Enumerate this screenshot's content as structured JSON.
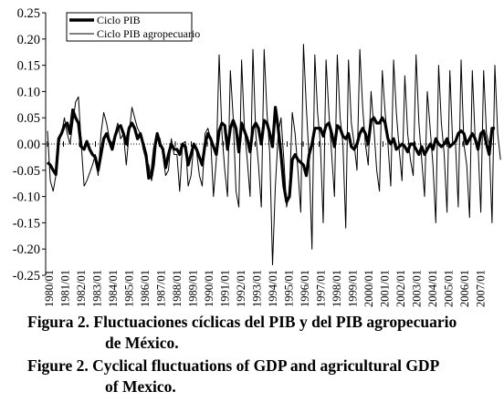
{
  "chart_data": {
    "type": "line",
    "ylim": [
      -0.25,
      0.25
    ],
    "yticks": [
      "0.25",
      "0.20",
      "0.15",
      "0.10",
      "0.05",
      "0.00",
      "-0.05",
      "-0.10",
      "-0.15",
      "-0.20",
      "-0.25"
    ],
    "xlabels": [
      "1980/01",
      "1981/01",
      "1982/01",
      "1983/01",
      "1984/01",
      "1985/01",
      "1986/01",
      "1987/01",
      "1988/01",
      "1989/01",
      "1990/01",
      "1991/01",
      "1992/01",
      "1993/01",
      "1994/01",
      "1995/01",
      "1996/01",
      "1997/01",
      "1998/01",
      "1999/01",
      "2000/01",
      "2001/01",
      "2002/01",
      "2003/01",
      "2004/01",
      "2005/01",
      "2006/01",
      "2007/01"
    ],
    "legend_position": "top-left",
    "series": [
      {
        "name": "Ciclo PIB",
        "style": "thick",
        "values": [
          -0.035,
          -0.04,
          -0.05,
          -0.058,
          0.01,
          0.02,
          0.035,
          0.04,
          0.02,
          0.065,
          0.05,
          0.04,
          -0.005,
          -0.01,
          0.005,
          -0.01,
          -0.02,
          -0.025,
          -0.05,
          -0.02,
          0.01,
          0.02,
          0.005,
          -0.01,
          0.015,
          0.03,
          0.035,
          0.02,
          0.0,
          0.03,
          0.04,
          0.03,
          0.01,
          0.02,
          0.0,
          -0.02,
          -0.065,
          -0.06,
          -0.01,
          0.02,
          0.0,
          -0.01,
          -0.045,
          -0.02,
          0.0,
          -0.01,
          -0.01,
          -0.02,
          0.0,
          -0.005,
          -0.04,
          -0.02,
          0.0,
          -0.01,
          -0.025,
          -0.04,
          0.0,
          0.02,
          0.01,
          -0.005,
          -0.02,
          0.025,
          0.04,
          0.035,
          -0.01,
          0.03,
          0.045,
          0.03,
          -0.015,
          0.04,
          0.025,
          0.01,
          -0.015,
          0.03,
          0.04,
          0.03,
          0.0,
          0.045,
          0.04,
          0.02,
          -0.005,
          0.07,
          0.03,
          -0.02,
          -0.08,
          -0.11,
          -0.1,
          -0.03,
          -0.02,
          -0.03,
          -0.035,
          -0.04,
          -0.06,
          -0.02,
          0.0,
          0.03,
          0.03,
          0.03,
          0.015,
          0.035,
          0.04,
          0.02,
          -0.005,
          0.035,
          0.03,
          0.015,
          0.01,
          0.02,
          -0.005,
          -0.01,
          0.0,
          0.02,
          0.03,
          0.02,
          0.0,
          0.045,
          0.05,
          0.04,
          0.04,
          0.05,
          0.04,
          0.01,
          0.0,
          0.01,
          -0.01,
          -0.005,
          0.0,
          -0.005,
          -0.015,
          0.0,
          0.0,
          -0.01,
          -0.02,
          -0.005,
          -0.02,
          -0.01,
          0.0,
          -0.01,
          0.01,
          0.0,
          -0.005,
          0.0,
          0.01,
          -0.005,
          0.0,
          0.005,
          0.02,
          0.025,
          0.02,
          0.0,
          0.01,
          0.02,
          0.01,
          -0.01,
          0.02,
          0.025,
          0.0,
          -0.02,
          0.03,
          0.03
        ]
      },
      {
        "name": "Ciclo PIB agropecuario",
        "style": "thin",
        "values": [
          0.025,
          -0.07,
          -0.09,
          -0.06,
          0.0,
          0.02,
          0.05,
          0.02,
          0.0,
          0.04,
          0.08,
          0.09,
          0.0,
          -0.08,
          -0.07,
          -0.055,
          -0.04,
          -0.02,
          -0.06,
          0.02,
          0.06,
          0.04,
          0.01,
          0.0,
          0.02,
          0.04,
          0.01,
          0.02,
          -0.04,
          0.02,
          0.07,
          0.05,
          0.03,
          0.02,
          -0.01,
          -0.03,
          -0.04,
          -0.07,
          -0.04,
          0.02,
          0.01,
          -0.02,
          -0.06,
          -0.05,
          0.01,
          -0.02,
          -0.02,
          -0.09,
          0.0,
          0.005,
          -0.08,
          -0.06,
          0.0,
          -0.015,
          -0.06,
          -0.08,
          0.02,
          0.03,
          0.01,
          -0.1,
          -0.03,
          0.17,
          0.02,
          -0.05,
          -0.1,
          0.14,
          0.05,
          -0.09,
          -0.12,
          0.16,
          0.03,
          -0.03,
          -0.1,
          0.18,
          0.02,
          -0.04,
          -0.12,
          0.18,
          0.06,
          -0.02,
          -0.23,
          -0.08,
          0.02,
          0.05,
          -0.03,
          -0.12,
          -0.09,
          0.06,
          0.02,
          -0.05,
          -0.13,
          0.19,
          0.07,
          -0.03,
          -0.2,
          0.17,
          0.06,
          0.0,
          -0.15,
          0.16,
          0.06,
          -0.02,
          -0.1,
          0.17,
          0.05,
          0.0,
          -0.16,
          0.16,
          0.04,
          0.0,
          -0.05,
          0.18,
          0.07,
          0.0,
          -0.04,
          0.1,
          0.03,
          -0.05,
          -0.09,
          0.14,
          0.06,
          0.0,
          -0.08,
          0.16,
          0.06,
          -0.01,
          -0.07,
          0.13,
          0.02,
          -0.03,
          -0.06,
          0.17,
          0.04,
          -0.03,
          -0.1,
          0.1,
          0.03,
          -0.04,
          -0.15,
          0.15,
          0.04,
          -0.02,
          -0.13,
          0.14,
          0.0,
          0.0,
          -0.12,
          0.16,
          0.0,
          -0.04,
          -0.14,
          0.14,
          0.01,
          0.0,
          -0.13,
          0.14,
          0.02,
          0.0,
          -0.15,
          0.15,
          0.02,
          -0.03
        ]
      }
    ]
  },
  "caption": {
    "line1": "Figura 2. Fluctuaciones cíclicas del PIB y del PIB agropecuario",
    "line2": "de México.",
    "line3": "Figure 2. Cyclical fluctuations of GDP and agricultural GDP",
    "line4": "of Mexico."
  },
  "colors": {
    "line": "#000000",
    "background": "#ffffff"
  }
}
